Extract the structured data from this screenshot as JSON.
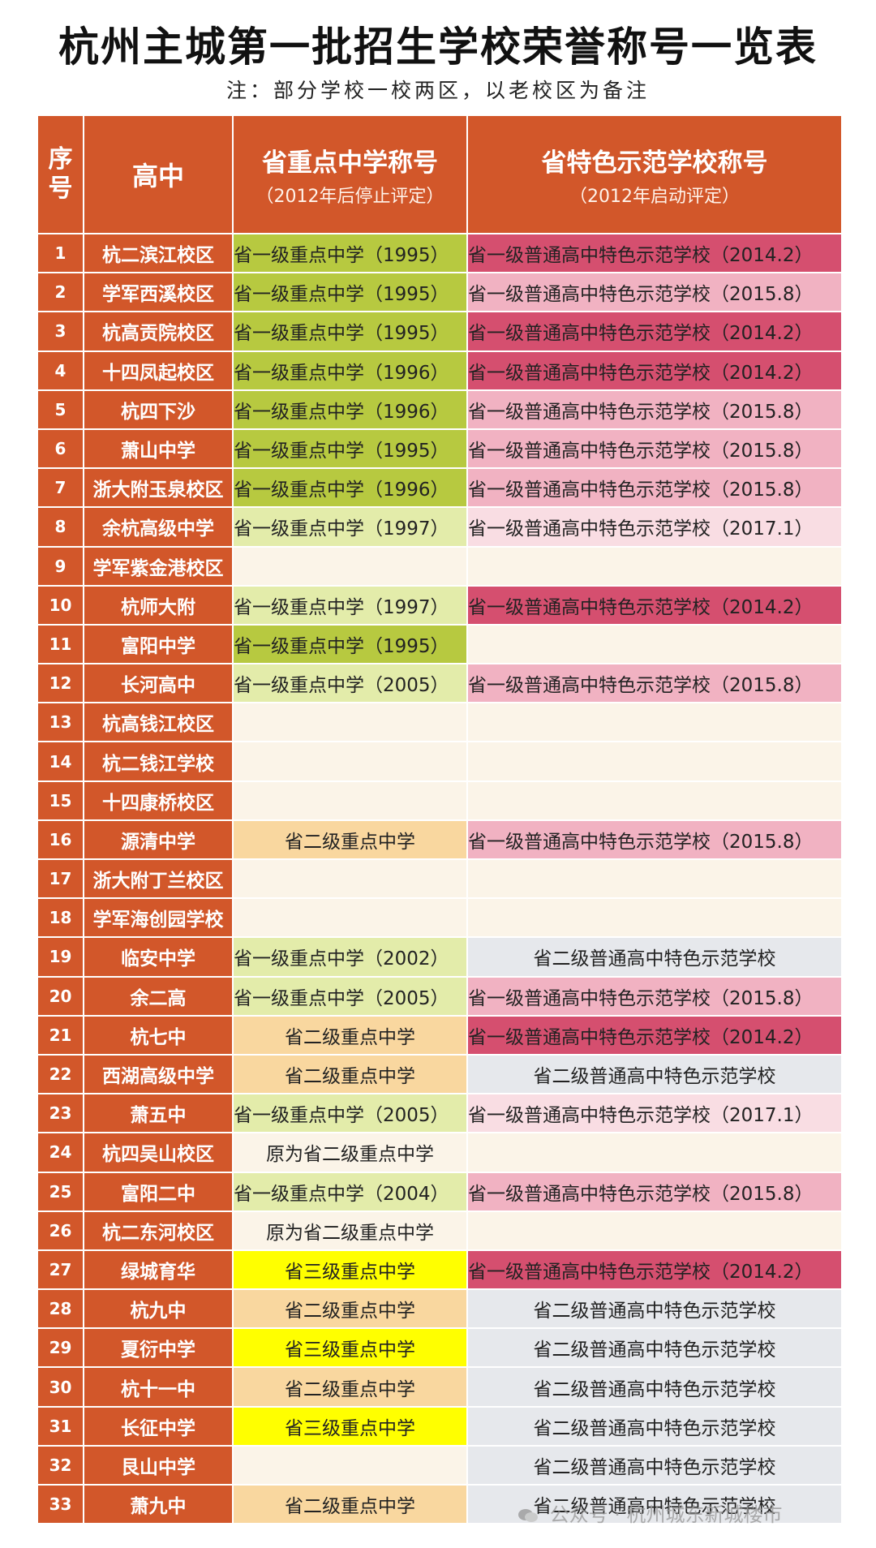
{
  "title": "杭州主城第一批招生学校荣誉称号一览表",
  "subtitle": "注：部分学校一校两区，以老校区为备注",
  "table": {
    "headers": {
      "seq_line1": "序",
      "seq_line2": "号",
      "school": "高中",
      "key_title": "省重点中学称号",
      "key_note": "（2012年后停止评定）",
      "special_title": "省特色示范学校称号",
      "special_note": "（2012年启动评定）"
    },
    "rows": [
      {
        "no": "1",
        "school": "杭二滨江校区",
        "key": "省一级重点中学（1995）",
        "special": "省一级普通高中特色示范学校（2014.2）"
      },
      {
        "no": "2",
        "school": "学军西溪校区",
        "key": "省一级重点中学（1995）",
        "special": "省一级普通高中特色示范学校（2015.8）"
      },
      {
        "no": "3",
        "school": "杭高贡院校区",
        "key": "省一级重点中学（1995）",
        "special": "省一级普通高中特色示范学校（2014.2）"
      },
      {
        "no": "4",
        "school": "十四凤起校区",
        "key": "省一级重点中学（1996）",
        "special": "省一级普通高中特色示范学校（2014.2）"
      },
      {
        "no": "5",
        "school": "杭四下沙",
        "key": "省一级重点中学（1996）",
        "special": "省一级普通高中特色示范学校（2015.8）"
      },
      {
        "no": "6",
        "school": "萧山中学",
        "key": "省一级重点中学（1995）",
        "special": "省一级普通高中特色示范学校（2015.8）"
      },
      {
        "no": "7",
        "school": "浙大附玉泉校区",
        "key": "省一级重点中学（1996）",
        "special": "省一级普通高中特色示范学校（2015.8）"
      },
      {
        "no": "8",
        "school": "余杭高级中学",
        "key": "省一级重点中学（1997）",
        "special": "省一级普通高中特色示范学校（2017.1）"
      },
      {
        "no": "9",
        "school": "学军紫金港校区",
        "key": "",
        "special": ""
      },
      {
        "no": "10",
        "school": "杭师大附",
        "key": "省一级重点中学（1997）",
        "special": "省一级普通高中特色示范学校（2014.2）"
      },
      {
        "no": "11",
        "school": "富阳中学",
        "key": "省一级重点中学（1995）",
        "special": ""
      },
      {
        "no": "12",
        "school": "长河高中",
        "key": "省一级重点中学（2005）",
        "special": "省一级普通高中特色示范学校（2015.8）"
      },
      {
        "no": "13",
        "school": "杭高钱江校区",
        "key": "",
        "special": ""
      },
      {
        "no": "14",
        "school": "杭二钱江学校",
        "key": "",
        "special": ""
      },
      {
        "no": "15",
        "school": "十四康桥校区",
        "key": "",
        "special": ""
      },
      {
        "no": "16",
        "school": "源清中学",
        "key": "省二级重点中学",
        "special": "省一级普通高中特色示范学校（2015.8）"
      },
      {
        "no": "17",
        "school": "浙大附丁兰校区",
        "key": "",
        "special": ""
      },
      {
        "no": "18",
        "school": "学军海创园学校",
        "key": "",
        "special": ""
      },
      {
        "no": "19",
        "school": "临安中学",
        "key": "省一级重点中学（2002）",
        "special": "省二级普通高中特色示范学校"
      },
      {
        "no": "20",
        "school": "余二高",
        "key": "省一级重点中学（2005）",
        "special": "省一级普通高中特色示范学校（2015.8）"
      },
      {
        "no": "21",
        "school": "杭七中",
        "key": "省二级重点中学",
        "special": "省一级普通高中特色示范学校（2014.2）"
      },
      {
        "no": "22",
        "school": "西湖高级中学",
        "key": "省二级重点中学",
        "special": "省二级普通高中特色示范学校"
      },
      {
        "no": "23",
        "school": "萧五中",
        "key": "省一级重点中学（2005）",
        "special": "省一级普通高中特色示范学校（2017.1）"
      },
      {
        "no": "24",
        "school": "杭四吴山校区",
        "key": "原为省二级重点中学",
        "special": ""
      },
      {
        "no": "25",
        "school": "富阳二中",
        "key": "省一级重点中学（2004）",
        "special": "省一级普通高中特色示范学校（2015.8）"
      },
      {
        "no": "26",
        "school": "杭二东河校区",
        "key": "原为省二级重点中学",
        "special": ""
      },
      {
        "no": "27",
        "school": "绿城育华",
        "key": "省三级重点中学",
        "special": "省一级普通高中特色示范学校（2014.2）"
      },
      {
        "no": "28",
        "school": "杭九中",
        "key": "省二级重点中学",
        "special": "省二级普通高中特色示范学校"
      },
      {
        "no": "29",
        "school": "夏衍中学",
        "key": "省三级重点中学",
        "special": "省二级普通高中特色示范学校"
      },
      {
        "no": "30",
        "school": "杭十一中",
        "key": "省二级重点中学",
        "special": "省二级普通高中特色示范学校"
      },
      {
        "no": "31",
        "school": "长征中学",
        "key": "省三级重点中学",
        "special": "省二级普通高中特色示范学校"
      },
      {
        "no": "32",
        "school": "艮山中学",
        "key": "",
        "special": "省二级普通高中特色示范学校"
      },
      {
        "no": "33",
        "school": "萧九中",
        "key": "省二级重点中学",
        "special": "省二级普通高中特色示范学校"
      }
    ]
  },
  "watermark": "公众号 · 杭州城东新城楼市",
  "colors": {
    "header": "#d2572a",
    "olive": "#b7c940",
    "light_green": "#e3ecaa",
    "peach": "#f9d79f",
    "yellow": "#ffff00",
    "empty": "#fbf4e8",
    "hot_pink": "#d54f6f",
    "light_pink": "#f1b2c2",
    "pale_pink": "#f9dde3",
    "gray": "#e6e8ec"
  }
}
